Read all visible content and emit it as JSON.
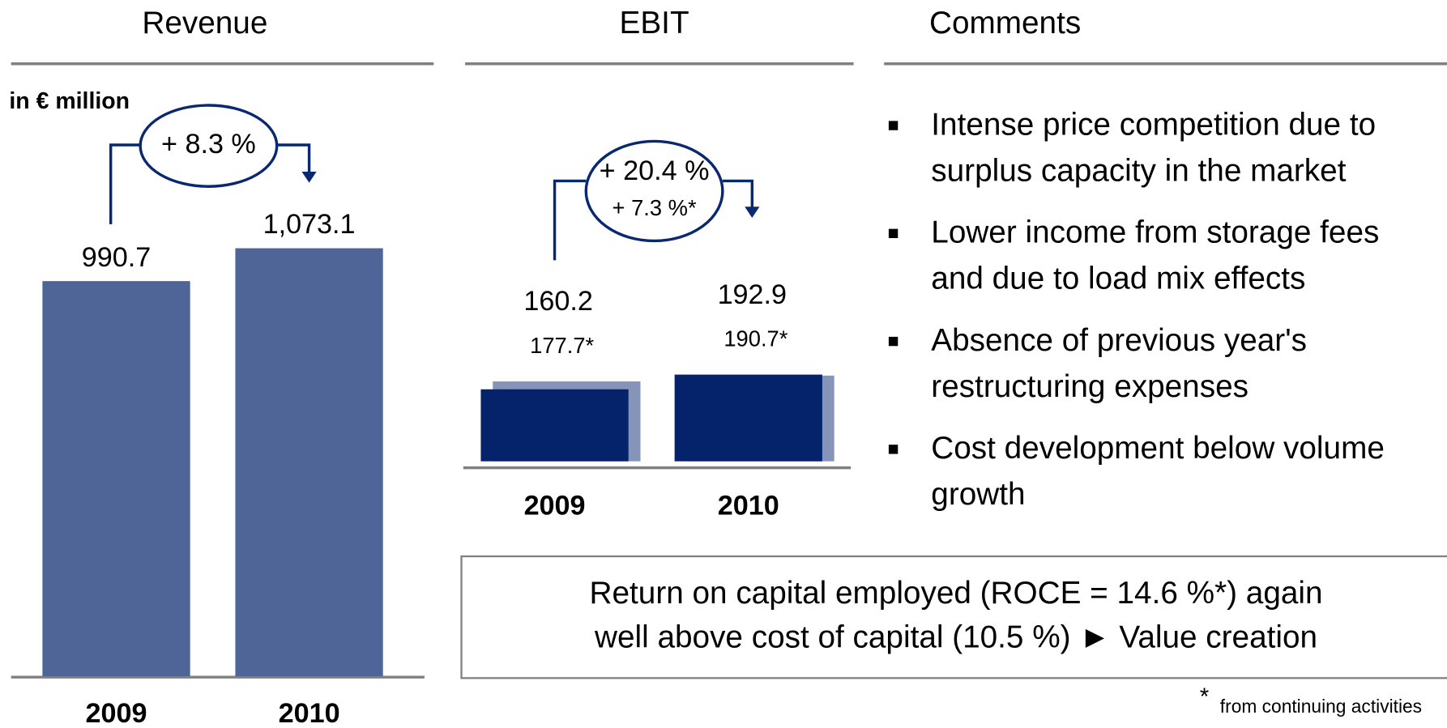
{
  "chart_data": [
    {
      "type": "bar",
      "title": "Revenue",
      "unit": "in € million",
      "categories": [
        "2009",
        "2010"
      ],
      "values": [
        990.7,
        1073.1
      ],
      "value_labels": [
        "990.7",
        "1,073.1"
      ],
      "color": "#4f6597",
      "annotation": "+ 8.3 %"
    },
    {
      "type": "bar",
      "title": "EBIT",
      "categories": [
        "2009",
        "2010"
      ],
      "series": [
        {
          "color": "#04236a",
          "values": [
            160.2,
            192.9
          ]
        },
        {
          "color": "#8594b8",
          "values": [
            177.7,
            190.7
          ],
          "value_labels": [
            "177.7*",
            "190.7*"
          ]
        }
      ],
      "annotations": [
        "+ 20.4 %",
        "+ 7.3 %*"
      ]
    }
  ],
  "comments": {
    "title": "Comments",
    "items": [
      [
        "Intense price competition due to",
        "surplus capacity in the market"
      ],
      [
        "Lower income from storage fees",
        "and due to load mix effects"
      ],
      [
        "Absence of previous year's",
        "restructuring expenses"
      ],
      [
        "Cost development below volume",
        "growth"
      ]
    ]
  },
  "highlight": {
    "lines": [
      "Return on capital employed (ROCE = 14.6 %*) again",
      "well above cost of capital (10.5 %) ► Value creation"
    ]
  },
  "footnote": {
    "marker": "*",
    "text": "from continuing activities"
  }
}
